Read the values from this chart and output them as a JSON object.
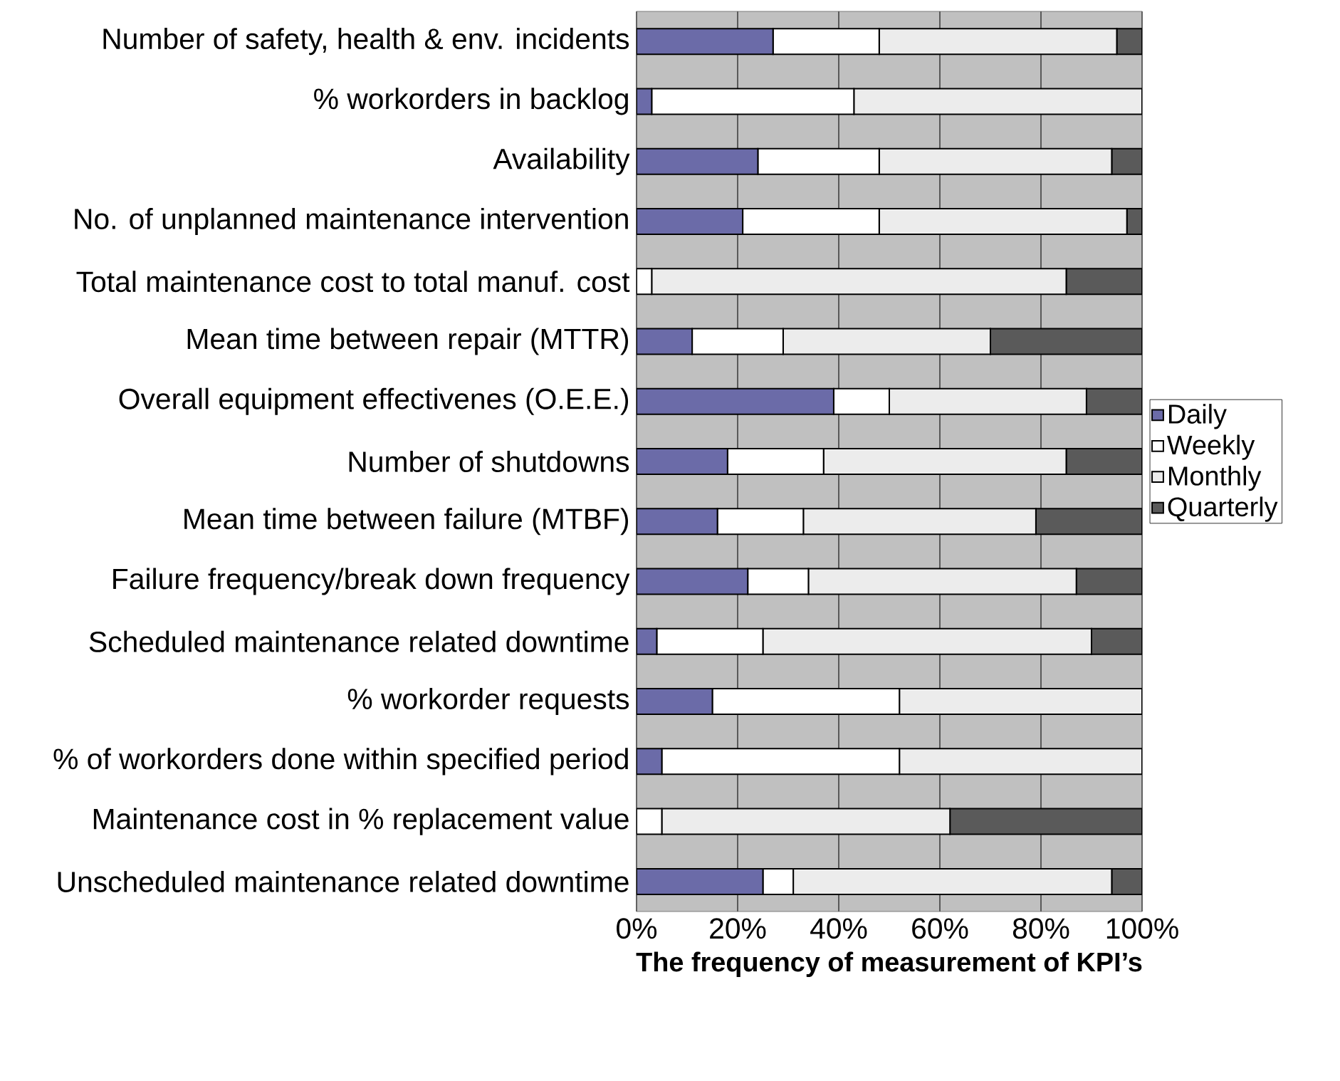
{
  "chart_data": {
    "type": "bar",
    "orientation": "horizontal",
    "stacked": true,
    "xlabel": "The frequency of measurement of KPI’s",
    "categories": [
      "Number of safety, health & env. incidents",
      "% workorders in backlog",
      "Availability",
      "No. of unplanned maintenance intervention",
      "Total maintenance cost to total manuf. cost",
      "Mean time between repair (MTTR)",
      "Overall equipment effectivenes (O.E.E.)",
      "Number of shutdowns",
      "Mean time between failure (MTBF)",
      "Failure frequency/break down frequency",
      "Scheduled maintenance related downtime",
      "% workorder requests",
      "% of workorders done within specified period",
      "Maintenance cost in % replacement value",
      "Unscheduled maintenance related downtime"
    ],
    "series": [
      {
        "name": "Daily",
        "color": "#6b6ba8",
        "values": [
          27,
          3,
          24,
          21,
          0,
          11,
          39,
          18,
          16,
          22,
          4,
          15,
          5,
          0,
          25
        ]
      },
      {
        "name": "Weekly",
        "color": "#ffffff",
        "values": [
          21,
          40,
          24,
          27,
          3,
          18,
          11,
          19,
          17,
          12,
          21,
          37,
          47,
          5,
          6
        ]
      },
      {
        "name": "Monthly",
        "color": "#ececec",
        "values": [
          47,
          57,
          46,
          49,
          82,
          41,
          39,
          48,
          46,
          53,
          65,
          48,
          48,
          57,
          63
        ]
      },
      {
        "name": "Quarterly",
        "color": "#5a5a5a",
        "values": [
          5,
          0,
          6,
          3,
          15,
          30,
          11,
          15,
          21,
          13,
          10,
          0,
          0,
          38,
          6
        ]
      }
    ],
    "xlim": [
      0,
      100
    ],
    "xticks": [
      {
        "value": 0,
        "label": "0%"
      },
      {
        "value": 20,
        "label": "20%"
      },
      {
        "value": 40,
        "label": "40%"
      },
      {
        "value": 60,
        "label": "60%"
      },
      {
        "value": 80,
        "label": "80%"
      },
      {
        "value": 100,
        "label": "100%"
      }
    ],
    "grid": "x",
    "legend": "right"
  }
}
